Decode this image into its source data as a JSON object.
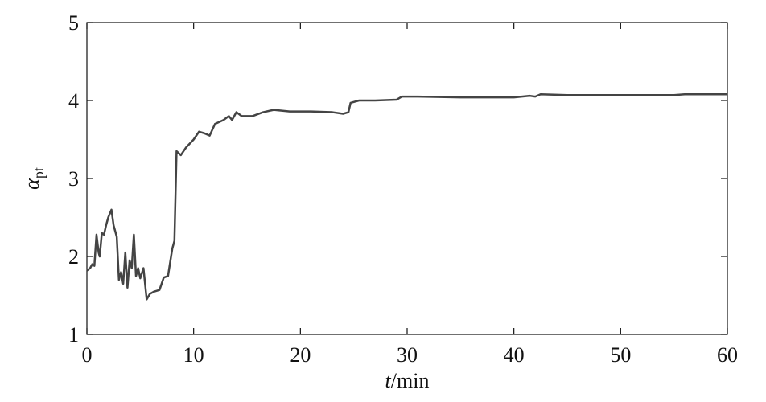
{
  "chart_data": {
    "type": "line",
    "xlabel": [
      "t",
      "/min"
    ],
    "ylabel": [
      "α",
      "pt"
    ],
    "xlim": [
      0,
      60
    ],
    "xticks": [
      0,
      10,
      20,
      30,
      40,
      50,
      60
    ],
    "ylim": [
      1,
      5
    ],
    "yticks": [
      1,
      2,
      3,
      4,
      5
    ],
    "grid": false,
    "series": [
      {
        "color": "#444444",
        "x": [
          0,
          0.3,
          0.5,
          0.7,
          0.9,
          1.1,
          1.2,
          1.4,
          1.6,
          1.8,
          2.0,
          2.3,
          2.5,
          2.8,
          3.0,
          3.2,
          3.4,
          3.6,
          3.8,
          4.0,
          4.2,
          4.4,
          4.6,
          4.8,
          5.0,
          5.3,
          5.6,
          5.9,
          6.3,
          6.8,
          7.2,
          7.6,
          8.0,
          8.2,
          8.4,
          8.8,
          9.3,
          10,
          10.5,
          11,
          11.5,
          12,
          12.8,
          13.3,
          13.6,
          14,
          14.5,
          15.5,
          16.5,
          17.5,
          19,
          21,
          23,
          24,
          24.5,
          24.7,
          25.5,
          27,
          29,
          29.5,
          31,
          35,
          40,
          41.5,
          42,
          42.5,
          45,
          50,
          55,
          56,
          60
        ],
        "values": [
          1.82,
          1.85,
          1.9,
          1.88,
          2.28,
          2.05,
          2.0,
          2.3,
          2.28,
          2.4,
          2.5,
          2.6,
          2.4,
          2.25,
          1.7,
          1.8,
          1.65,
          2.05,
          1.6,
          1.95,
          1.85,
          2.28,
          1.75,
          1.85,
          1.72,
          1.85,
          1.45,
          1.52,
          1.55,
          1.57,
          1.73,
          1.75,
          2.1,
          2.2,
          3.35,
          3.3,
          3.4,
          3.5,
          3.6,
          3.58,
          3.55,
          3.7,
          3.75,
          3.8,
          3.75,
          3.85,
          3.8,
          3.8,
          3.85,
          3.88,
          3.86,
          3.86,
          3.85,
          3.83,
          3.85,
          3.97,
          4.0,
          4.0,
          4.01,
          4.05,
          4.05,
          4.04,
          4.04,
          4.06,
          4.05,
          4.08,
          4.07,
          4.07,
          4.07,
          4.08,
          4.08
        ]
      }
    ]
  }
}
